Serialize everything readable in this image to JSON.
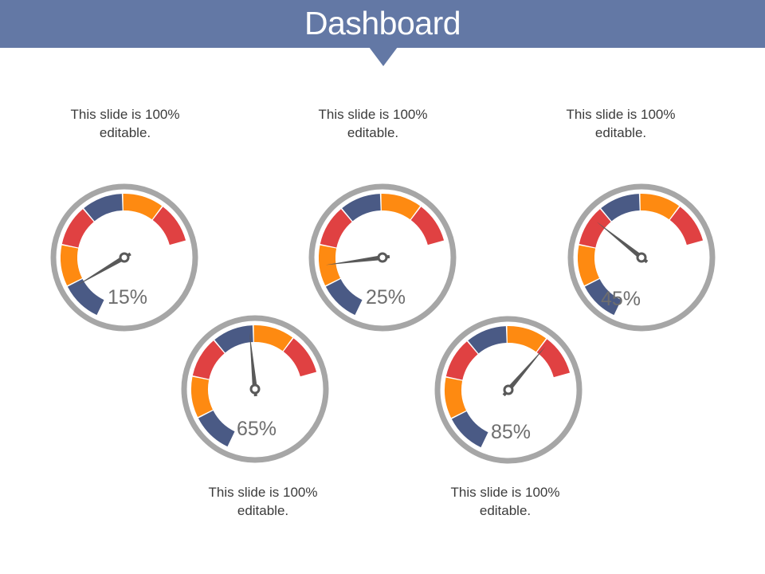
{
  "header": {
    "title": "Dashboard",
    "color": "#6378a5"
  },
  "colors": {
    "ring": "#a6a6a6",
    "navy": "#4a5a85",
    "orange": "#fe8a11",
    "red": "#e04142",
    "needle": "#595959"
  },
  "gauges": [
    {
      "label": "15%",
      "value": 15,
      "caption_line1": "This slide is 100%",
      "caption_line2": "editable."
    },
    {
      "label": "25%",
      "value": 25,
      "caption_line1": "This slide is 100%",
      "caption_line2": "editable."
    },
    {
      "label": "45%",
      "value": 45,
      "caption_line1": "This slide is 100%",
      "caption_line2": "editable."
    },
    {
      "label": "65%",
      "value": 65,
      "caption_line1": "This slide is 100%",
      "caption_line2": "editable."
    },
    {
      "label": "85%",
      "value": 85,
      "caption_line1": "This slide is 100%",
      "caption_line2": "editable."
    }
  ]
}
